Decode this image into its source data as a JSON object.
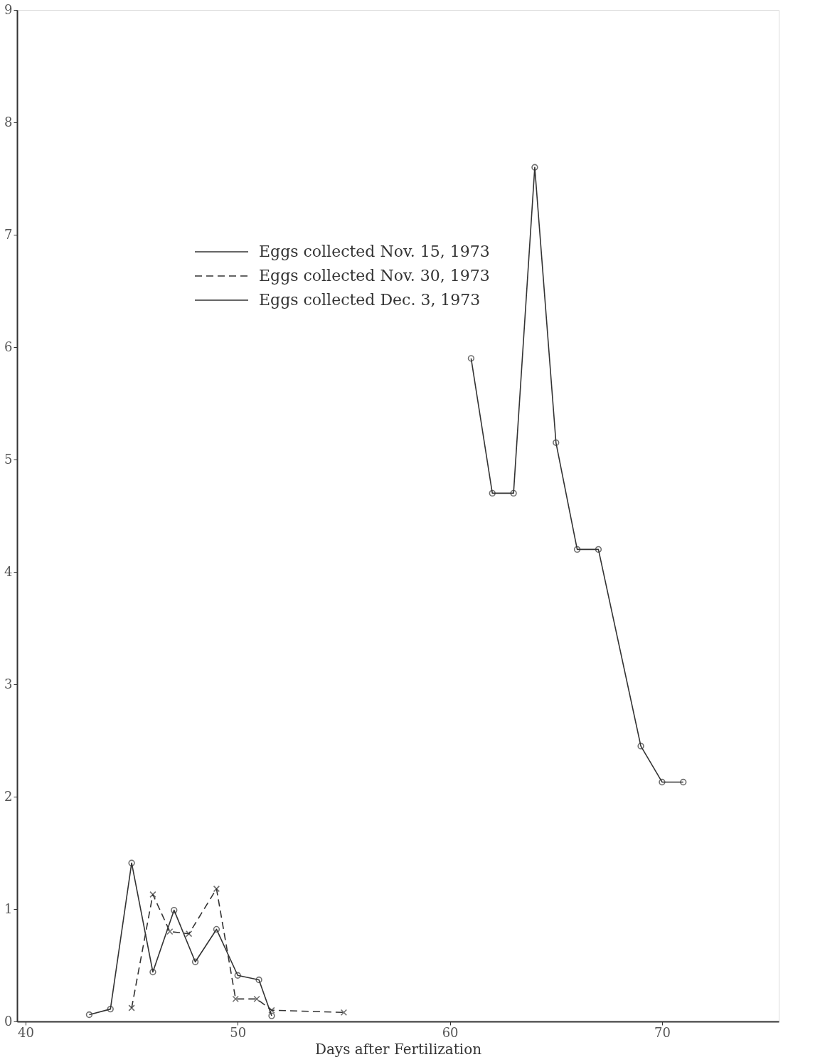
{
  "chart_data": {
    "type": "line",
    "xlabel": "Days after Fertilization",
    "xlim": [
      39.6,
      75.5
    ],
    "xticks": [
      40,
      50,
      60,
      70
    ],
    "ylim": [
      0,
      9
    ],
    "yticks": [
      0,
      1,
      2,
      3,
      4,
      5,
      6,
      7,
      8,
      9
    ],
    "grid": false,
    "legend": "top",
    "series": [
      {
        "name": "Eggs collected Nov. 15, 1973",
        "color": "#333333",
        "line_style": "solid",
        "marker": "circle",
        "x": [
          61,
          62,
          63,
          64,
          65,
          66,
          67,
          69,
          70,
          71
        ],
        "values": [
          5.9,
          4.7,
          4.7,
          7.6,
          5.15,
          4.2,
          4.2,
          2.45,
          2.13,
          2.13
        ]
      },
      {
        "name": "Eggs collected Nov. 30, 1973",
        "color": "#333333",
        "line_style": "dashed",
        "marker": "cross",
        "x": [
          45,
          46,
          46.8,
          47.7,
          49,
          49.9,
          50.9,
          51.6,
          55
        ],
        "values": [
          0.12,
          1.13,
          0.8,
          0.78,
          1.18,
          0.2,
          0.2,
          0.1,
          0.08
        ]
      },
      {
        "name": "Eggs collected Dec. 3, 1973",
        "color": "#333333",
        "line_style": "solid",
        "marker": "circle",
        "x": [
          43,
          44,
          45,
          46,
          47,
          48,
          49,
          50,
          51,
          51.6
        ],
        "values": [
          0.06,
          0.11,
          1.41,
          0.44,
          0.99,
          0.53,
          0.82,
          0.41,
          0.37,
          0.05
        ]
      }
    ]
  }
}
